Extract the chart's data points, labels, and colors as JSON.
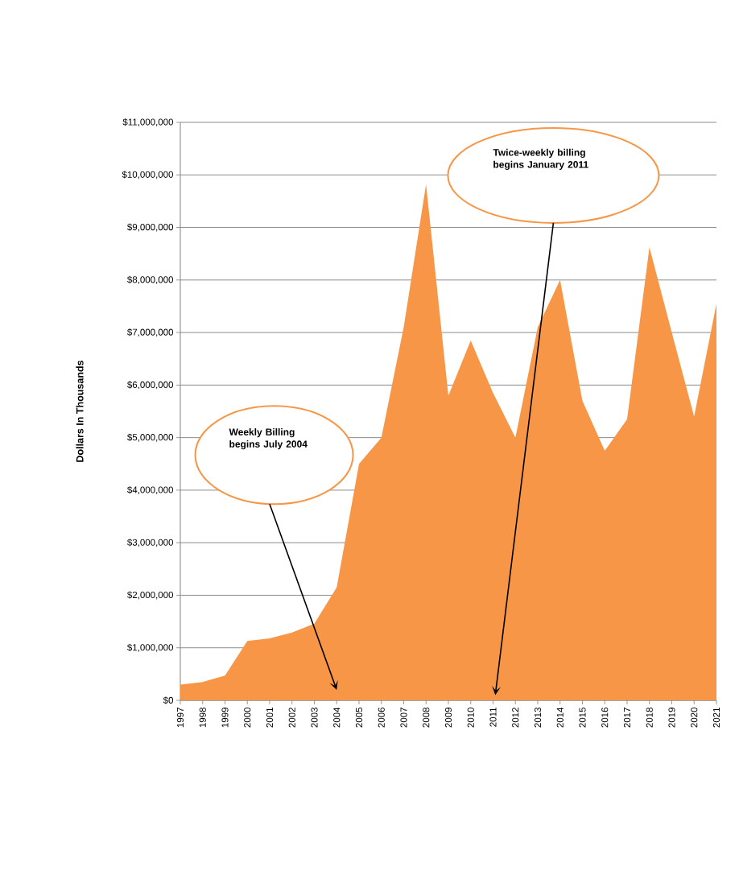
{
  "chart_data": {
    "type": "area",
    "ylabel": "Dollars In Thousands",
    "color": "#f79646",
    "categories": [
      "1997",
      "1998",
      "1999",
      "2000",
      "2001",
      "2002",
      "2003",
      "2004",
      "2005",
      "2006",
      "2007",
      "2008",
      "2009",
      "2010",
      "2011",
      "2012",
      "2013",
      "2014",
      "2015",
      "2016",
      "2017",
      "2018",
      "2019",
      "2020",
      "2021"
    ],
    "values": [
      300000,
      350000,
      470000,
      1130000,
      1180000,
      1290000,
      1460000,
      2150000,
      4500000,
      5000000,
      7100000,
      9820000,
      5800000,
      6850000,
      5850000,
      5000000,
      7100000,
      8000000,
      5700000,
      4750000,
      5350000,
      8620000,
      7000000,
      5400000,
      7550000
    ],
    "ylim": [
      0,
      11000000
    ],
    "yticks": [
      {
        "value": 0,
        "label": "$0"
      },
      {
        "value": 1000000,
        "label": "$1,000,000"
      },
      {
        "value": 2000000,
        "label": "$2,000,000"
      },
      {
        "value": 3000000,
        "label": "$3,000,000"
      },
      {
        "value": 4000000,
        "label": "$4,000,000"
      },
      {
        "value": 5000000,
        "label": "$5,000,000"
      },
      {
        "value": 6000000,
        "label": "$6,000,000"
      },
      {
        "value": 7000000,
        "label": "$7,000,000"
      },
      {
        "value": 8000000,
        "label": "$8,000,000"
      },
      {
        "value": 9000000,
        "label": "$9,000,000"
      },
      {
        "value": 10000000,
        "label": "$10,000,000"
      },
      {
        "value": 11000000,
        "label": "$11,000,000"
      }
    ],
    "grid": "y",
    "annotations": [
      "Weekly Billing begins July 2004",
      "Twice-weekly billing begins January 2011"
    ]
  }
}
